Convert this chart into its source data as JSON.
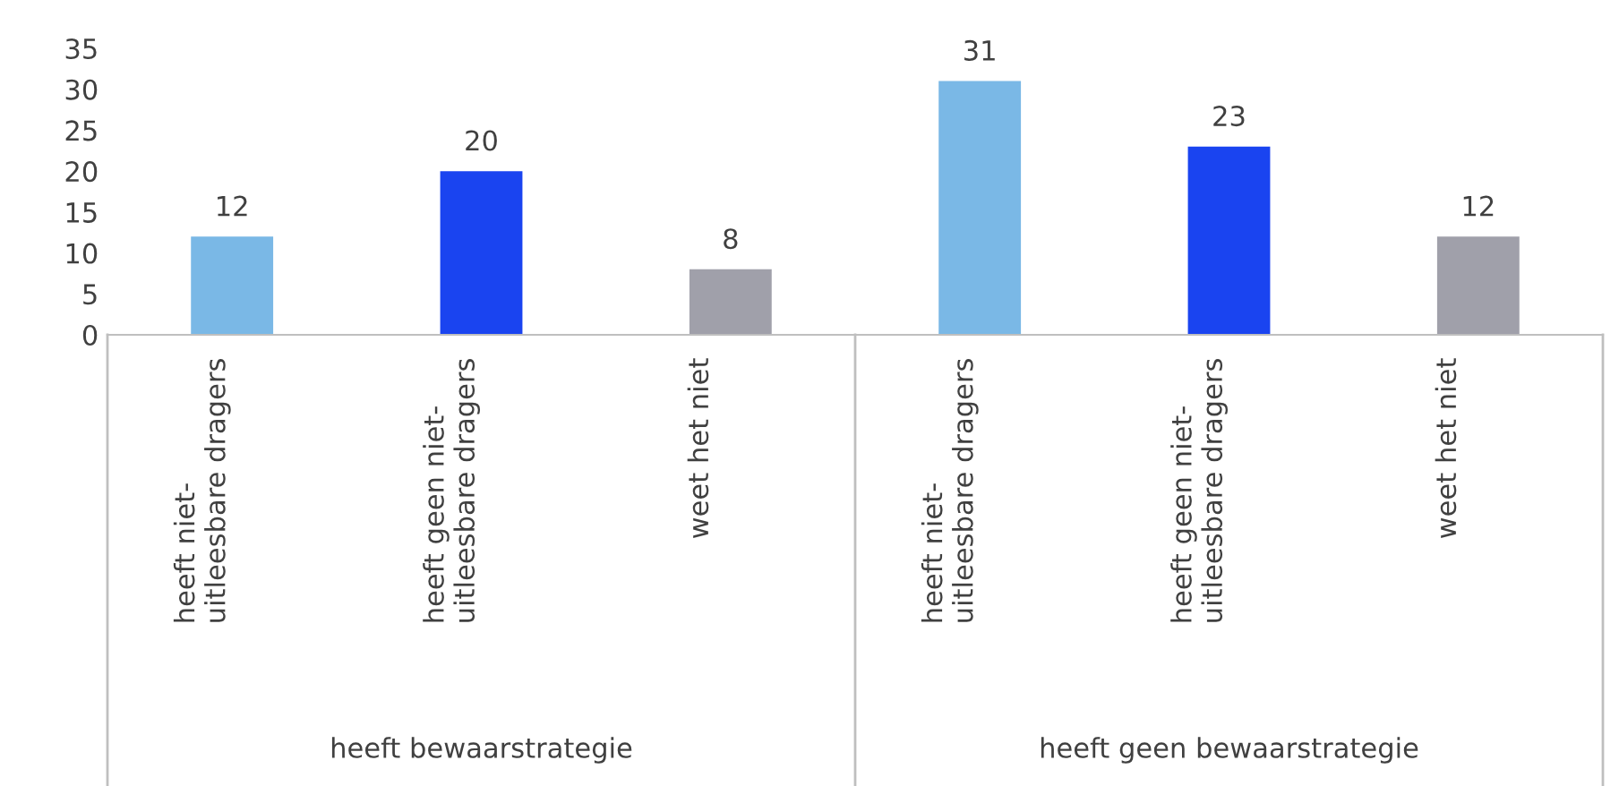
{
  "chart_data": {
    "type": "bar",
    "categories": [
      "heeft niet-\nuitleesbare dragers",
      "heeft geen niet-\nuitleesbare dragers",
      "weet het niet",
      "heeft niet-\nuitleesbare dragers",
      "heeft geen niet-\nuitleesbare dragers",
      "weet het niet"
    ],
    "values": [
      12,
      20,
      8,
      31,
      23,
      12
    ],
    "colors": [
      "#7ab8e6",
      "#1a44f0",
      "#a0a0aa",
      "#7ab8e6",
      "#1a44f0",
      "#a0a0aa"
    ],
    "ylim": [
      0,
      35
    ],
    "yticks": [
      0,
      5,
      10,
      15,
      20,
      25,
      30,
      35
    ],
    "data_labels": true,
    "grid": false,
    "legend": false,
    "annotations": [
      "heeft bewaarstrategie",
      "heeft geen bewaarstrategie"
    ]
  }
}
